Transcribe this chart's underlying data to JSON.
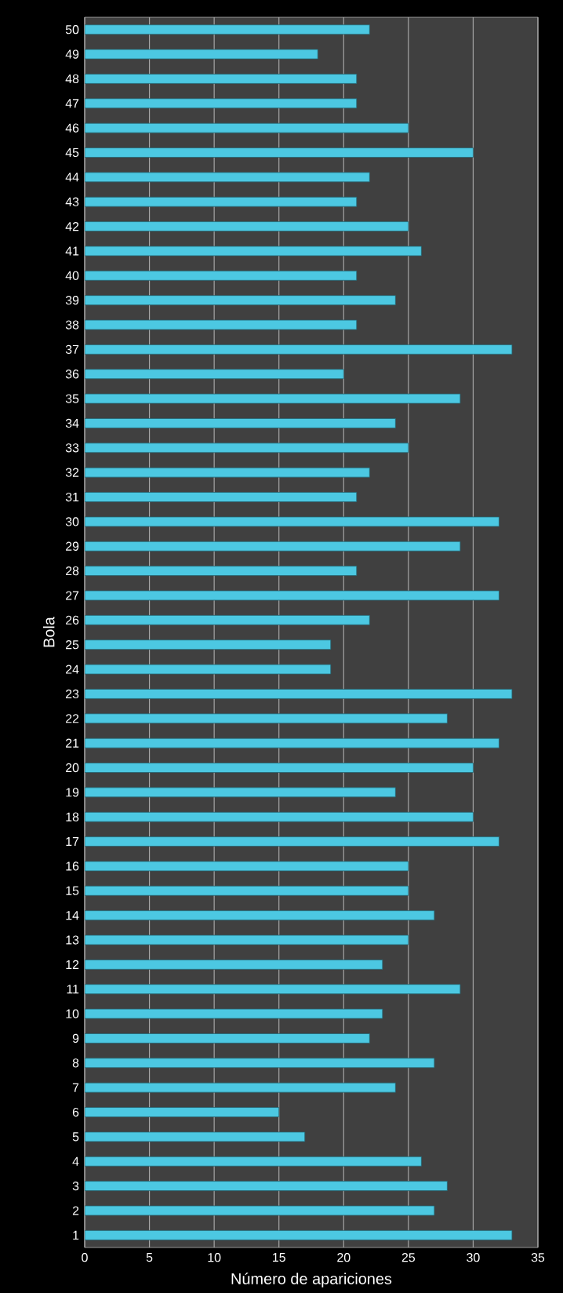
{
  "chart_data": {
    "type": "bar",
    "orientation": "horizontal",
    "xlabel": "Número  de apariciones",
    "ylabel": "Bola",
    "categories": [
      "50",
      "49",
      "48",
      "47",
      "46",
      "45",
      "44",
      "43",
      "42",
      "41",
      "40",
      "39",
      "38",
      "37",
      "36",
      "35",
      "34",
      "33",
      "32",
      "31",
      "30",
      "29",
      "28",
      "27",
      "26",
      "25",
      "24",
      "23",
      "22",
      "21",
      "20",
      "19",
      "18",
      "17",
      "16",
      "15",
      "14",
      "13",
      "12",
      "11",
      "10",
      "9",
      "8",
      "7",
      "6",
      "5",
      "4",
      "3",
      "2",
      "1"
    ],
    "values": [
      22,
      18,
      21,
      21,
      25,
      30,
      22,
      21,
      25,
      26,
      21,
      24,
      21,
      33,
      20,
      29,
      24,
      25,
      22,
      21,
      32,
      29,
      21,
      32,
      22,
      19,
      19,
      33,
      28,
      32,
      30,
      24,
      30,
      32,
      25,
      25,
      27,
      25,
      23,
      29,
      23,
      22,
      27,
      24,
      15,
      17,
      26,
      28,
      27,
      33
    ],
    "color": "#4cc8e2",
    "xlim": [
      0,
      35
    ],
    "xticks": [
      0,
      5,
      10,
      15,
      20,
      25,
      30,
      35
    ],
    "grid": "x"
  }
}
